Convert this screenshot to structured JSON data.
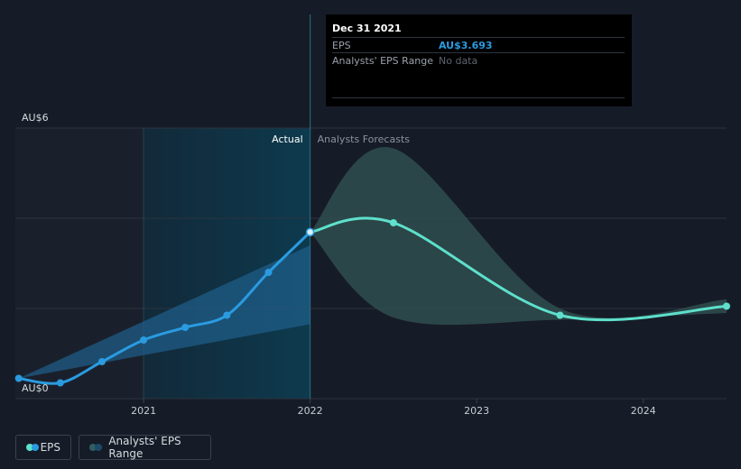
{
  "tooltip": {
    "date": "Dec 31 2021",
    "eps_label": "EPS",
    "eps_value": "AU$3.693",
    "range_label": "Analysts' EPS Range",
    "range_value": "No data"
  },
  "legend": {
    "eps_label": "EPS",
    "range_label": "Analysts' EPS Range"
  },
  "colors": {
    "background": "#161c27",
    "eps_actual": "#2a9be0",
    "eps_forecast": "#5ee0cc",
    "actual_band": "#0d3a4e",
    "forecast_range": "#2f4d4f",
    "grid": "#2c333f"
  },
  "chart_data": {
    "type": "line",
    "title": "",
    "xlabel": "",
    "ylabel": "",
    "y_tick_labels": [
      "AU$6",
      "AU$0"
    ],
    "x_ticks": [
      {
        "year": 2021,
        "label": "2021"
      },
      {
        "year": 2022,
        "label": "2022"
      },
      {
        "year": 2023,
        "label": "2023"
      },
      {
        "year": 2024,
        "label": "2024"
      }
    ],
    "xlim": [
      2020.23,
      2024.5
    ],
    "ylim": [
      0,
      6
    ],
    "gridlines_y": [
      0,
      2,
      4,
      6
    ],
    "section_labels": {
      "actual": "Actual",
      "forecast": "Analysts Forecasts"
    },
    "divider_x": 2022.0,
    "actual_band_start": 2021.0,
    "series": [
      {
        "name": "EPS (actual)",
        "points": [
          {
            "x": 2020.25,
            "y": 0.45
          },
          {
            "x": 2020.5,
            "y": 0.35
          },
          {
            "x": 2020.75,
            "y": 0.82
          },
          {
            "x": 2021.0,
            "y": 1.3
          },
          {
            "x": 2021.25,
            "y": 1.58
          },
          {
            "x": 2021.5,
            "y": 1.85
          },
          {
            "x": 2021.75,
            "y": 2.8
          },
          {
            "x": 2022.0,
            "y": 3.693
          }
        ]
      },
      {
        "name": "EPS (forecast)",
        "points": [
          {
            "x": 2022.0,
            "y": 3.693
          },
          {
            "x": 2022.5,
            "y": 3.9
          },
          {
            "x": 2023.5,
            "y": 1.85
          },
          {
            "x": 2024.5,
            "y": 2.05
          }
        ]
      }
    ],
    "range_actual": {
      "x": [
        2020.25,
        2022.0
      ],
      "low": [
        0.45,
        1.65
      ],
      "high": [
        0.45,
        3.4
      ]
    },
    "range_forecast": {
      "x": [
        2022.0,
        2022.5,
        2023.5,
        2024.5
      ],
      "low": [
        3.693,
        1.8,
        1.75,
        1.9
      ],
      "high": [
        3.693,
        5.55,
        2.0,
        2.2
      ]
    }
  }
}
